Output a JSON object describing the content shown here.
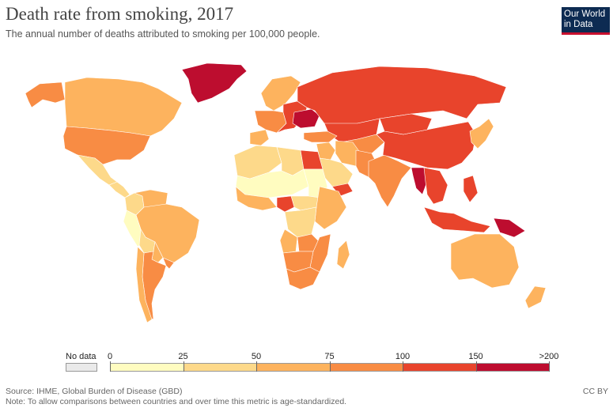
{
  "header": {
    "title": "Death rate from smoking, 2017",
    "subtitle": "The annual number of deaths attributed to smoking per 100,000 people."
  },
  "logo": {
    "line1": "Our World",
    "line2": "in Data",
    "bg": "#0d2b52",
    "accent": "#c8102e"
  },
  "legend": {
    "no_data_label": "No data",
    "no_data_color": "#eaeaea",
    "bins": [
      {
        "from": "0",
        "to": "25",
        "color": "#fffcc0"
      },
      {
        "from": "25",
        "to": "50",
        "color": "#fdd98a"
      },
      {
        "from": "50",
        "to": "75",
        "color": "#fdb35e"
      },
      {
        "from": "75",
        "to": "100",
        "color": "#f88c44"
      },
      {
        "from": "100",
        "to": "150",
        "color": "#e8442c"
      },
      {
        "from": "150",
        "to": ">200",
        "color": "#bd0d2f"
      }
    ],
    "tick_labels": [
      "0",
      "25",
      "50",
      "75",
      "100",
      "150",
      ">200"
    ]
  },
  "regions": [
    {
      "name": "Greenland",
      "bin": 5
    },
    {
      "name": "Canada",
      "bin": 2
    },
    {
      "name": "Alaska",
      "bin": 3
    },
    {
      "name": "United States",
      "bin": 3
    },
    {
      "name": "Mexico",
      "bin": 1
    },
    {
      "name": "Central America",
      "bin": 1
    },
    {
      "name": "Colombia",
      "bin": 1
    },
    {
      "name": "Venezuela",
      "bin": 2
    },
    {
      "name": "Brazil",
      "bin": 2
    },
    {
      "name": "Peru",
      "bin": 0
    },
    {
      "name": "Bolivia",
      "bin": 1
    },
    {
      "name": "Paraguay",
      "bin": 2
    },
    {
      "name": "Argentina",
      "bin": 3
    },
    {
      "name": "Chile",
      "bin": 2
    },
    {
      "name": "Uruguay",
      "bin": 3
    },
    {
      "name": "Western Europe",
      "bin": 3
    },
    {
      "name": "Scandinavia",
      "bin": 2
    },
    {
      "name": "Iberia",
      "bin": 2
    },
    {
      "name": "Eastern Europe",
      "bin": 4
    },
    {
      "name": "Ukraine",
      "bin": 5
    },
    {
      "name": "Russia",
      "bin": 4
    },
    {
      "name": "Kazakhstan",
      "bin": 4
    },
    {
      "name": "Central Asia",
      "bin": 3
    },
    {
      "name": "Turkey",
      "bin": 3
    },
    {
      "name": "Middle East",
      "bin": 2
    },
    {
      "name": "Saudi Arabia",
      "bin": 1
    },
    {
      "name": "Yemen",
      "bin": 4
    },
    {
      "name": "Iran",
      "bin": 2
    },
    {
      "name": "Afghanistan Pakistan",
      "bin": 3
    },
    {
      "name": "India",
      "bin": 3
    },
    {
      "name": "China",
      "bin": 4
    },
    {
      "name": "Mongolia",
      "bin": 4
    },
    {
      "name": "Myanmar",
      "bin": 5
    },
    {
      "name": "Indochina",
      "bin": 4
    },
    {
      "name": "Korea Japan",
      "bin": 2
    },
    {
      "name": "Philippines",
      "bin": 4
    },
    {
      "name": "Indonesia",
      "bin": 4
    },
    {
      "name": "Papua New Guinea",
      "bin": 5
    },
    {
      "name": "Australia",
      "bin": 2
    },
    {
      "name": "New Zealand",
      "bin": 2
    },
    {
      "name": "North Africa West",
      "bin": 1
    },
    {
      "name": "Libya",
      "bin": 1
    },
    {
      "name": "Egypt",
      "bin": 4
    },
    {
      "name": "Sahel",
      "bin": 0
    },
    {
      "name": "Sudan",
      "bin": 0
    },
    {
      "name": "West Africa coast",
      "bin": 2
    },
    {
      "name": "Central Africa",
      "bin": 1
    },
    {
      "name": "Cameroon",
      "bin": 4
    },
    {
      "name": "East Africa",
      "bin": 2
    },
    {
      "name": "DR Congo",
      "bin": 1
    },
    {
      "name": "Angola",
      "bin": 2
    },
    {
      "name": "Zambia",
      "bin": 3
    },
    {
      "name": "Zimbabwe Mozambique",
      "bin": 3
    },
    {
      "name": "Namibia Botswana",
      "bin": 3
    },
    {
      "name": "South Africa",
      "bin": 3
    },
    {
      "name": "Madagascar",
      "bin": 2
    }
  ],
  "footer": {
    "source": "Source: IHME, Global Burden of Disease (GBD)",
    "note": "Note: To allow comparisons between countries and over time this metric is age-standardized.",
    "license": "CC BY"
  }
}
